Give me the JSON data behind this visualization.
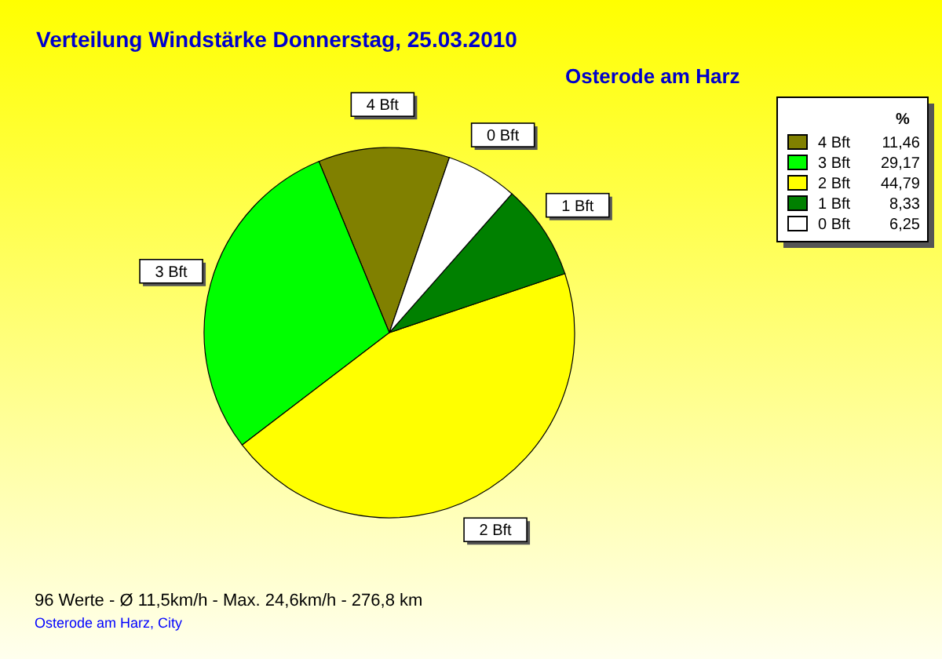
{
  "chart_data": {
    "type": "pie",
    "title": "Verteilung Windstärke  Donnerstag, 25.03.2010",
    "subtitle": "Osterode am Harz",
    "categories": [
      "4 Bft",
      "3 Bft",
      "2 Bft",
      "1 Bft",
      "0 Bft"
    ],
    "values": [
      11.46,
      29.17,
      44.79,
      8.33,
      6.25
    ],
    "value_labels": [
      "11,46",
      "29,17",
      "44,79",
      "8,33",
      "6,25"
    ],
    "colors": [
      "#808000",
      "#00ff00",
      "#ffff00",
      "#008000",
      "#ffffff"
    ],
    "legend": "top right",
    "legend_title": "%",
    "annotations": [
      "96 Werte   -   Ø 11,5km/h  -  Max. 24,6km/h   -   276,8 km",
      "Osterode am Harz, City"
    ]
  }
}
